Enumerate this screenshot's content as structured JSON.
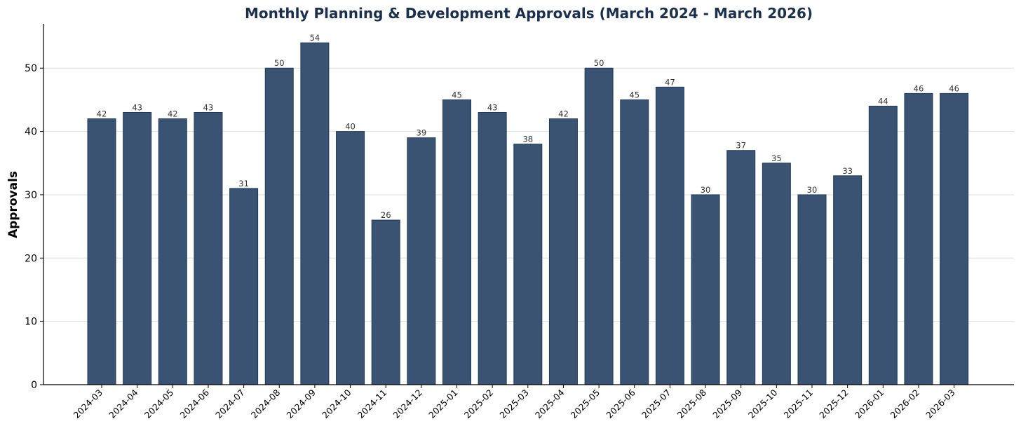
{
  "chart_data": {
    "type": "bar",
    "title": "Monthly Planning & Development Approvals (March 2024 - March 2026)",
    "xlabel": "",
    "ylabel": "Approvals",
    "ylim": [
      0,
      57
    ],
    "yticks": [
      0,
      10,
      20,
      30,
      40,
      50
    ],
    "grid": "horizontal",
    "categories": [
      "2024-03",
      "2024-04",
      "2024-05",
      "2024-06",
      "2024-07",
      "2024-08",
      "2024-09",
      "2024-10",
      "2024-11",
      "2024-12",
      "2025-01",
      "2025-02",
      "2025-03",
      "2025-04",
      "2025-05",
      "2025-06",
      "2025-07",
      "2025-08",
      "2025-09",
      "2025-10",
      "2025-11",
      "2025-12",
      "2026-01",
      "2026-02",
      "2026-03"
    ],
    "values": [
      42,
      43,
      42,
      43,
      31,
      50,
      54,
      40,
      26,
      39,
      45,
      43,
      38,
      42,
      50,
      45,
      47,
      30,
      37,
      35,
      30,
      33,
      44,
      46,
      46
    ],
    "colors": {
      "bar": "#3b5373",
      "bar_edge": "#1f3a5c",
      "title": "#1b2f4f",
      "data_label": "#333333",
      "grid": "#dddddd",
      "axis": "#000000"
    }
  }
}
